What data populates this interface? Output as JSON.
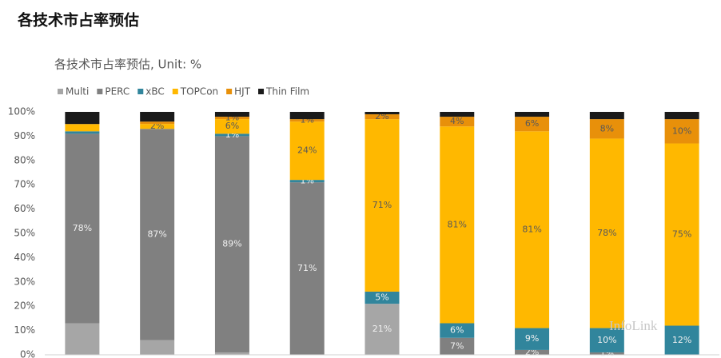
{
  "page_title": "各技术市占率预估",
  "chart_data": {
    "type": "stacked_bar",
    "title": "各技术市占率预估, Unit: %",
    "watermark": "InfoLink",
    "categories": [
      null,
      null,
      null,
      null,
      null,
      null,
      null,
      null,
      null
    ],
    "series": [
      {
        "name": "Multi",
        "color": "#a6a6a6",
        "values": [
          13,
          6,
          1,
          0,
          21,
          0,
          0,
          0,
          0
        ],
        "value_labels": [
          null,
          null,
          null,
          null,
          "21%",
          null,
          null,
          null,
          null
        ]
      },
      {
        "name": "PERC",
        "color": "#808080",
        "values": [
          78,
          87,
          89,
          71,
          0,
          7,
          2,
          1,
          0
        ],
        "value_labels": [
          "78%",
          "87%",
          "89%",
          "71%",
          null,
          "7%",
          "2%",
          "1%",
          null
        ]
      },
      {
        "name": "xBC",
        "color": "#31859c",
        "values": [
          1,
          0,
          1,
          1,
          5,
          6,
          9,
          10,
          12
        ],
        "value_labels": [
          null,
          null,
          "1%",
          "1%",
          "5%",
          "6%",
          "9%",
          "10%",
          "12%"
        ]
      },
      {
        "name": "TOPCon",
        "color": "#ffb800",
        "values": [
          3,
          2,
          6,
          24,
          71,
          81,
          81,
          78,
          75
        ],
        "value_labels": [
          null,
          "2%",
          "6%",
          "24%",
          "71%",
          "81%",
          "81%",
          "78%",
          "75%"
        ]
      },
      {
        "name": "HJT",
        "color": "#e8900a",
        "values": [
          0,
          1,
          1,
          1,
          2,
          4,
          6,
          8,
          10
        ],
        "value_labels": [
          null,
          null,
          "1%",
          "1%",
          "2%",
          "4%",
          "6%",
          "8%",
          "10%"
        ]
      },
      {
        "name": "Thin Film",
        "color": "#1a1a1a",
        "values": [
          5,
          4,
          2,
          3,
          1,
          2,
          2,
          3,
          3
        ],
        "value_labels": [
          null,
          null,
          null,
          null,
          null,
          null,
          null,
          null,
          null
        ]
      }
    ],
    "ylim": [
      0,
      100
    ],
    "yticks": [
      {
        "value": 0,
        "label": "0%"
      },
      {
        "value": 10,
        "label": "10%"
      },
      {
        "value": 20,
        "label": "20%"
      },
      {
        "value": 30,
        "label": "30%"
      },
      {
        "value": 40,
        "label": "40%"
      },
      {
        "value": 50,
        "label": "50%"
      },
      {
        "value": 60,
        "label": "60%"
      },
      {
        "value": 70,
        "label": "70%"
      },
      {
        "value": 80,
        "label": "80%"
      },
      {
        "value": 90,
        "label": "90%"
      },
      {
        "value": 100,
        "label": "100%"
      }
    ],
    "legend": "top-left"
  }
}
